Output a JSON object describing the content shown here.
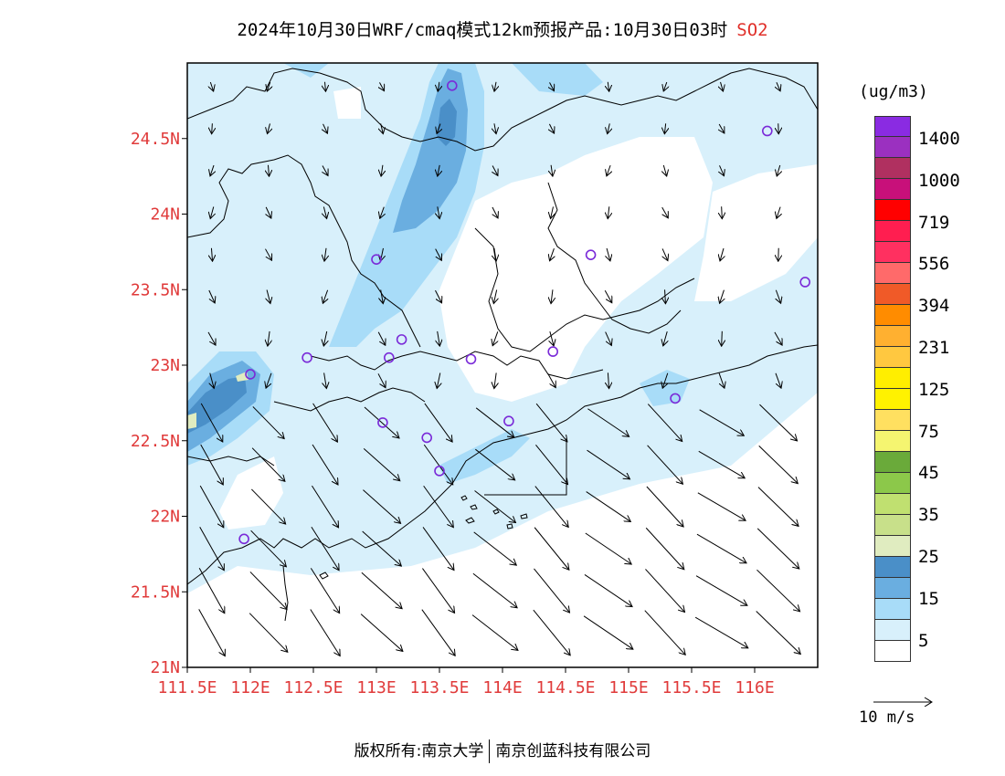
{
  "title": {
    "main": "2024年10月30日WRF/cmaq模式12km预报产品:10月30日03时",
    "pollutant": "SO2"
  },
  "axes": {
    "y_ticks": [
      "24.5N",
      "24N",
      "23.5N",
      "23N",
      "22.5N",
      "22N",
      "21.5N",
      "21N"
    ],
    "x_ticks": [
      "111.5E",
      "112E",
      "112.5E",
      "113E",
      "113.5E",
      "114E",
      "114.5E",
      "115E",
      "115.5E",
      "116E"
    ],
    "lon_range": [
      111.5,
      116.5
    ],
    "lat_range": [
      21,
      25
    ]
  },
  "legend": {
    "units": "(ug/m3)",
    "levels": [
      "1400",
      "1000",
      "719",
      "556",
      "394",
      "231",
      "125",
      "75",
      "45",
      "35",
      "25",
      "15",
      "5"
    ],
    "colors": [
      "#8a2be2",
      "#9b30c0",
      "#b03060",
      "#c8107a",
      "#ff0000",
      "#ff1e50",
      "#ff3060",
      "#ff6a6a",
      "#f05a28",
      "#ff8c00",
      "#ffb030",
      "#ffc840",
      "#ffee00",
      "#fff200",
      "#ffe060",
      "#f5f570",
      "#6aaa3a",
      "#8cc84a",
      "#c0e070",
      "#c8e08a",
      "#e0ecc0",
      "#4a8fc8",
      "#6aaee0",
      "#a8dcf8",
      "#d8f0fb",
      "#ffffff"
    ]
  },
  "wind_key": {
    "label": "10 m/s"
  },
  "footer": {
    "left": "版权所有:南京大学",
    "right": "南京创蓝科技有限公司"
  },
  "stations": [
    {
      "lon": 113.6,
      "lat": 24.85
    },
    {
      "lon": 116.1,
      "lat": 24.55
    },
    {
      "lon": 113.0,
      "lat": 23.7
    },
    {
      "lon": 114.7,
      "lat": 23.73
    },
    {
      "lon": 116.4,
      "lat": 23.55
    },
    {
      "lon": 112.45,
      "lat": 23.05
    },
    {
      "lon": 113.2,
      "lat": 23.17
    },
    {
      "lon": 113.1,
      "lat": 23.05
    },
    {
      "lon": 113.75,
      "lat": 23.04
    },
    {
      "lon": 114.4,
      "lat": 23.09
    },
    {
      "lon": 112.0,
      "lat": 22.94
    },
    {
      "lon": 113.05,
      "lat": 22.62
    },
    {
      "lon": 113.4,
      "lat": 22.52
    },
    {
      "lon": 114.05,
      "lat": 22.63
    },
    {
      "lon": 113.5,
      "lat": 22.3
    },
    {
      "lon": 115.37,
      "lat": 22.78
    },
    {
      "lon": 111.95,
      "lat": 21.85
    }
  ]
}
